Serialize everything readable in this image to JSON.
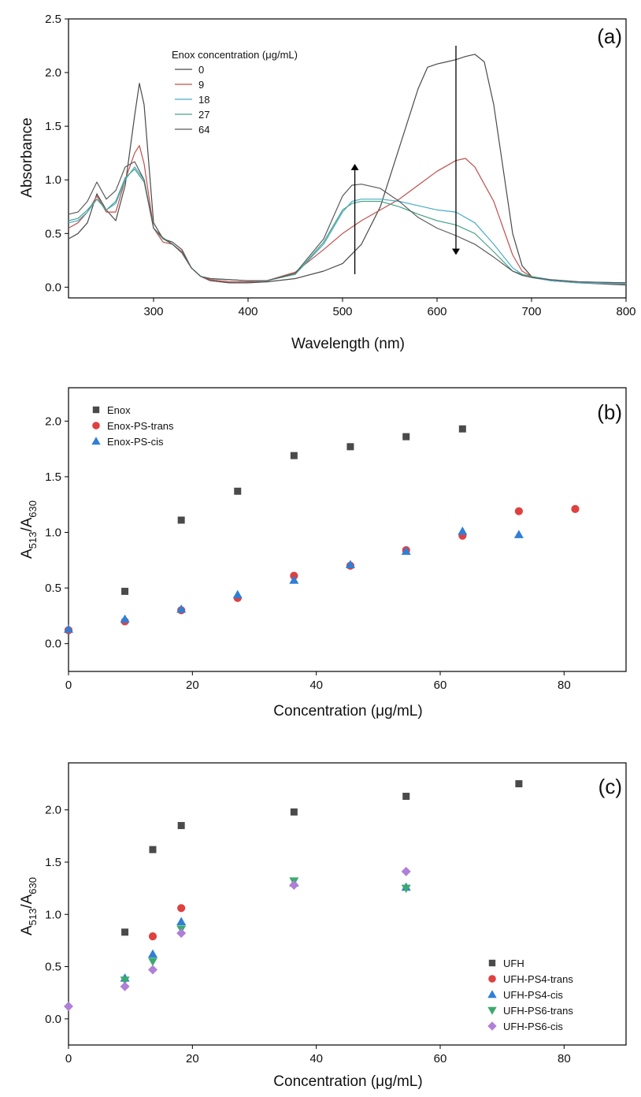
{
  "chart_data": [
    {
      "panel_label": "(a)",
      "type": "line",
      "xlabel": "Wavelength (nm)",
      "ylabel": "Absorbance",
      "xlim": [
        210,
        800
      ],
      "ylim": [
        -0.1,
        2.5
      ],
      "xticks": [
        300,
        400,
        500,
        600,
        700,
        800
      ],
      "yticks": [
        0.0,
        0.5,
        1.0,
        1.5,
        2.0,
        2.5
      ],
      "yticklabels": [
        "0.0",
        "0.5",
        "1.0",
        "1.5",
        "2.0",
        "2.5"
      ],
      "legend_title": "Enox concentration (μg/mL)",
      "legend_location": "upper-left",
      "grid": false,
      "arrows": [
        {
          "x": 513,
          "from": 0.12,
          "to": 1.12
        },
        {
          "x": 620,
          "from": 2.25,
          "to": 0.33
        }
      ],
      "series": [
        {
          "name": "0",
          "color": "#4a4a4a",
          "x": [
            210,
            220,
            230,
            240,
            250,
            260,
            270,
            280,
            285,
            290,
            300,
            310,
            320,
            330,
            340,
            350,
            360,
            380,
            400,
            420,
            450,
            480,
            500,
            520,
            540,
            560,
            580,
            590,
            600,
            610,
            620,
            630,
            640,
            650,
            660,
            670,
            680,
            690,
            700,
            720,
            750,
            800
          ],
          "y": [
            0.45,
            0.5,
            0.6,
            0.87,
            0.72,
            0.62,
            0.95,
            1.6,
            1.9,
            1.7,
            0.6,
            0.45,
            0.42,
            0.35,
            0.18,
            0.1,
            0.06,
            0.04,
            0.04,
            0.05,
            0.08,
            0.15,
            0.22,
            0.4,
            0.75,
            1.3,
            1.85,
            2.05,
            2.08,
            2.1,
            2.12,
            2.15,
            2.17,
            2.1,
            1.7,
            1.1,
            0.5,
            0.2,
            0.1,
            0.06,
            0.04,
            0.02
          ]
        },
        {
          "name": "9",
          "color": "#c0504d",
          "x": [
            210,
            220,
            230,
            240,
            250,
            260,
            270,
            280,
            285,
            290,
            300,
            310,
            320,
            330,
            340,
            350,
            360,
            380,
            400,
            420,
            450,
            480,
            500,
            520,
            540,
            560,
            580,
            600,
            620,
            630,
            640,
            660,
            670,
            680,
            690,
            700,
            720,
            750,
            800
          ],
          "y": [
            0.55,
            0.6,
            0.7,
            0.85,
            0.7,
            0.7,
            1.0,
            1.25,
            1.32,
            1.15,
            0.55,
            0.42,
            0.4,
            0.33,
            0.18,
            0.1,
            0.07,
            0.05,
            0.05,
            0.06,
            0.14,
            0.35,
            0.5,
            0.62,
            0.72,
            0.82,
            0.95,
            1.08,
            1.18,
            1.2,
            1.12,
            0.8,
            0.55,
            0.3,
            0.15,
            0.1,
            0.06,
            0.04,
            0.03
          ]
        },
        {
          "name": "18",
          "color": "#4bacc6",
          "x": [
            210,
            220,
            230,
            240,
            250,
            260,
            270,
            280,
            290,
            300,
            310,
            320,
            330,
            340,
            350,
            360,
            380,
            400,
            420,
            450,
            480,
            500,
            510,
            520,
            540,
            560,
            580,
            600,
            620,
            640,
            660,
            680,
            690,
            700,
            720,
            750,
            800
          ],
          "y": [
            0.6,
            0.62,
            0.7,
            0.82,
            0.72,
            0.78,
            1.0,
            1.12,
            1.0,
            0.55,
            0.45,
            0.4,
            0.32,
            0.18,
            0.1,
            0.08,
            0.07,
            0.06,
            0.06,
            0.12,
            0.4,
            0.7,
            0.8,
            0.82,
            0.82,
            0.8,
            0.76,
            0.72,
            0.7,
            0.6,
            0.4,
            0.18,
            0.12,
            0.09,
            0.06,
            0.04,
            0.03
          ]
        },
        {
          "name": "27",
          "color": "#4aa38a",
          "x": [
            210,
            220,
            230,
            240,
            250,
            260,
            270,
            280,
            290,
            300,
            310,
            320,
            330,
            340,
            350,
            360,
            380,
            400,
            420,
            450,
            480,
            500,
            510,
            520,
            540,
            560,
            580,
            600,
            620,
            640,
            660,
            680,
            690,
            700,
            720,
            750,
            800
          ],
          "y": [
            0.62,
            0.64,
            0.72,
            0.82,
            0.72,
            0.8,
            1.02,
            1.1,
            0.98,
            0.55,
            0.45,
            0.4,
            0.32,
            0.18,
            0.1,
            0.08,
            0.07,
            0.06,
            0.06,
            0.12,
            0.42,
            0.72,
            0.78,
            0.8,
            0.8,
            0.75,
            0.68,
            0.62,
            0.58,
            0.5,
            0.33,
            0.15,
            0.12,
            0.1,
            0.07,
            0.05,
            0.04
          ]
        },
        {
          "name": "64",
          "color": "#5a5a5a",
          "x": [
            210,
            220,
            230,
            240,
            250,
            260,
            270,
            280,
            290,
            300,
            310,
            320,
            330,
            340,
            350,
            360,
            380,
            400,
            420,
            450,
            480,
            500,
            510,
            520,
            540,
            560,
            580,
            600,
            620,
            640,
            660,
            680,
            690,
            700,
            720,
            750,
            800
          ],
          "y": [
            0.68,
            0.7,
            0.8,
            0.98,
            0.82,
            0.9,
            1.12,
            1.17,
            1.0,
            0.55,
            0.46,
            0.4,
            0.32,
            0.18,
            0.1,
            0.08,
            0.07,
            0.06,
            0.06,
            0.13,
            0.45,
            0.85,
            0.95,
            0.96,
            0.92,
            0.8,
            0.65,
            0.55,
            0.48,
            0.4,
            0.28,
            0.15,
            0.11,
            0.09,
            0.07,
            0.05,
            0.04
          ]
        }
      ]
    },
    {
      "panel_label": "(b)",
      "type": "scatter",
      "xlabel": "Concentration (μg/mL)",
      "ylabel_main": "A",
      "ylabel_sub1": "513",
      "ylabel_sep": "/A",
      "ylabel_sub2": "630",
      "xlim": [
        0,
        90
      ],
      "ylim": [
        -0.25,
        2.3
      ],
      "xticks": [
        0,
        20,
        40,
        60,
        80
      ],
      "yticks": [
        0.0,
        0.5,
        1.0,
        1.5,
        2.0
      ],
      "yticklabels": [
        "0.0",
        "0.5",
        "1.0",
        "1.5",
        "2.0"
      ],
      "legend_location": "upper-left",
      "grid": false,
      "series": [
        {
          "name": "Enox",
          "marker": "square",
          "color": "#4a4a4a",
          "x": [
            9.1,
            18.2,
            27.3,
            36.4,
            45.5,
            54.5,
            63.6
          ],
          "y": [
            0.47,
            1.11,
            1.37,
            1.69,
            1.77,
            1.86,
            1.93
          ]
        },
        {
          "name": "Enox-PS-trans",
          "marker": "circle",
          "color": "#e04040",
          "x": [
            0,
            9.1,
            18.2,
            27.3,
            36.4,
            45.5,
            54.5,
            63.6,
            72.7,
            81.8
          ],
          "y": [
            0.12,
            0.2,
            0.3,
            0.41,
            0.61,
            0.7,
            0.84,
            0.97,
            1.19,
            1.21
          ]
        },
        {
          "name": "Enox-PS-cis",
          "marker": "triangle-up",
          "color": "#2f7fd6",
          "x": [
            0,
            9.1,
            18.2,
            27.3,
            36.4,
            45.5,
            54.5,
            63.6,
            72.7
          ],
          "y": [
            0.13,
            0.22,
            0.31,
            0.44,
            0.57,
            0.71,
            0.83,
            1.01,
            0.98
          ]
        }
      ]
    },
    {
      "panel_label": "(c)",
      "type": "scatter",
      "xlabel": "Concentration (μg/mL)",
      "ylabel_main": "A",
      "ylabel_sub1": "513",
      "ylabel_sep": "/A",
      "ylabel_sub2": "630",
      "xlim": [
        0,
        90
      ],
      "ylim": [
        -0.25,
        2.45
      ],
      "xticks": [
        0,
        20,
        40,
        60,
        80
      ],
      "yticks": [
        0.0,
        0.5,
        1.0,
        1.5,
        2.0
      ],
      "yticklabels": [
        "0.0",
        "0.5",
        "1.0",
        "1.5",
        "2.0"
      ],
      "legend_location": "lower-right",
      "grid": false,
      "series": [
        {
          "name": "UFH",
          "marker": "square",
          "color": "#4a4a4a",
          "x": [
            9.1,
            13.6,
            18.2,
            36.4,
            54.5,
            72.7
          ],
          "y": [
            0.83,
            1.62,
            1.85,
            1.98,
            2.13,
            2.25
          ]
        },
        {
          "name": "UFH-PS4-trans",
          "marker": "circle",
          "color": "#e04040",
          "x": [
            13.6,
            18.2
          ],
          "y": [
            0.79,
            1.06
          ]
        },
        {
          "name": "UFH-PS4-cis",
          "marker": "triangle-up",
          "color": "#2f7fd6",
          "x": [
            9.1,
            13.6,
            18.2,
            36.4,
            54.5
          ],
          "y": [
            0.39,
            0.62,
            0.93,
            1.3,
            1.26
          ]
        },
        {
          "name": "UFH-PS6-trans",
          "marker": "triangle-down",
          "color": "#3caa6e",
          "x": [
            9.1,
            13.6,
            18.2,
            36.4,
            54.5
          ],
          "y": [
            0.37,
            0.55,
            0.86,
            1.32,
            1.25
          ]
        },
        {
          "name": "UFH-PS6-cis",
          "marker": "diamond",
          "color": "#b07fd8",
          "x": [
            0,
            9.1,
            13.6,
            18.2,
            36.4,
            54.5
          ],
          "y": [
            0.12,
            0.31,
            0.47,
            0.82,
            1.28,
            1.41
          ]
        }
      ]
    }
  ]
}
